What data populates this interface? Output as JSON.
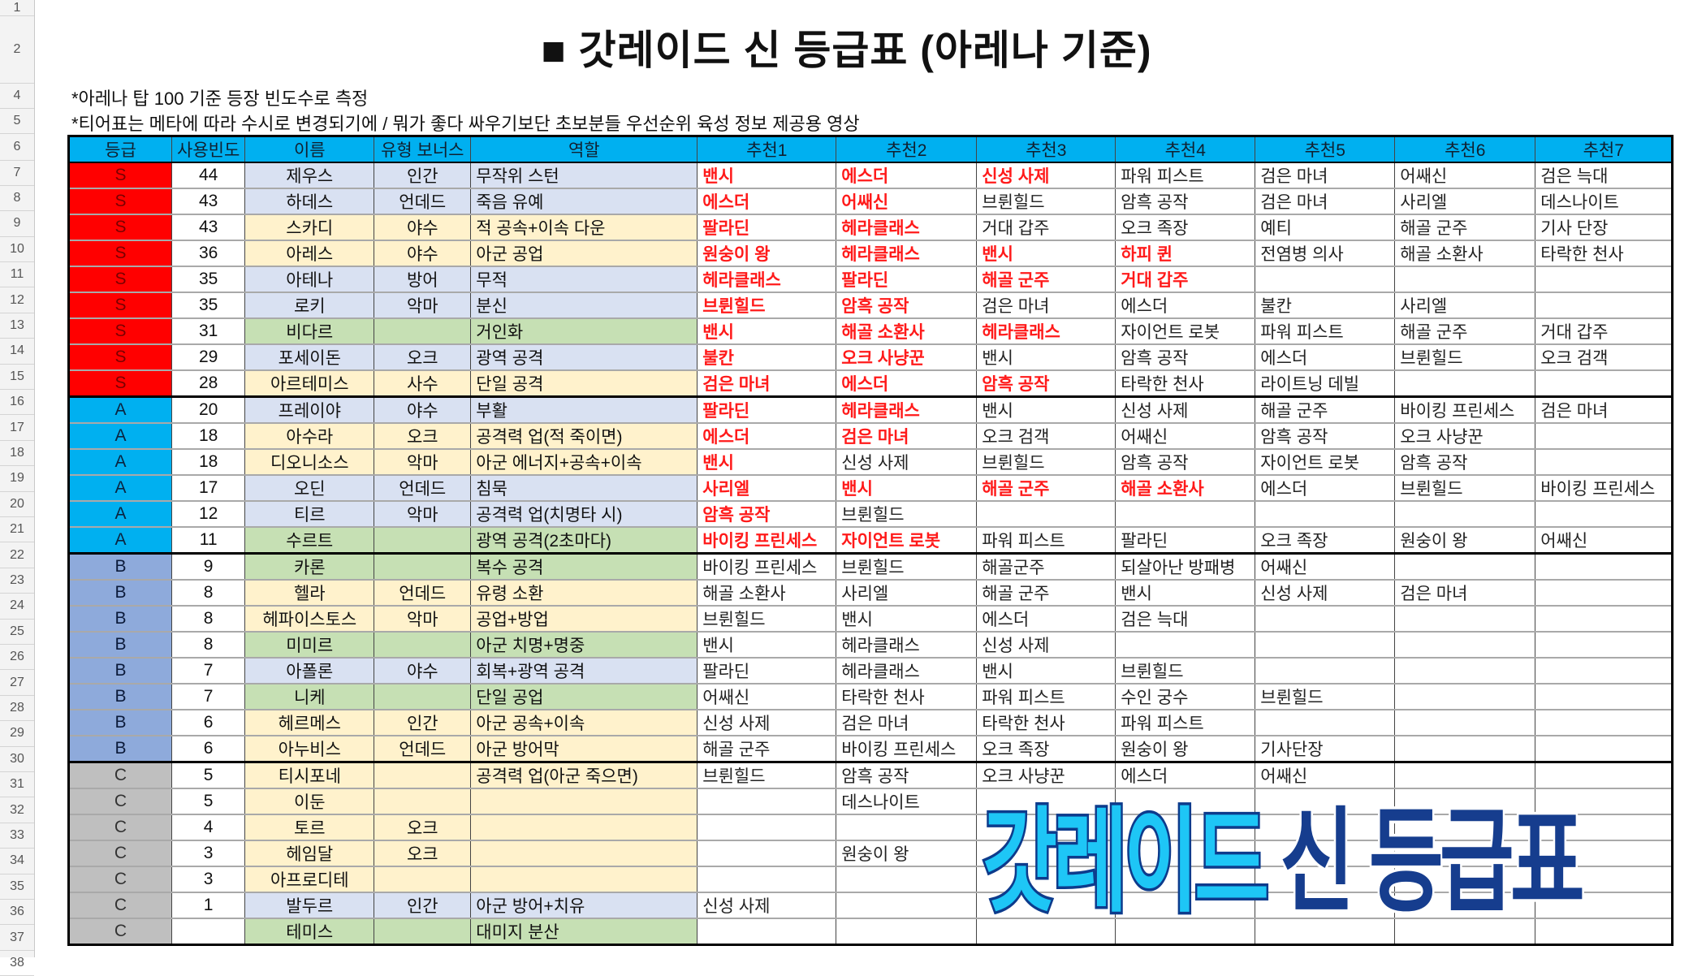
{
  "row_numbers": [
    "1",
    "2",
    "4",
    "5",
    "6",
    "7",
    "8",
    "9",
    "10",
    "11",
    "12",
    "13",
    "14",
    "15",
    "16",
    "17",
    "18",
    "19",
    "20",
    "21",
    "22",
    "23",
    "24",
    "25",
    "26",
    "27",
    "28",
    "29",
    "30",
    "31",
    "32",
    "33",
    "34",
    "35",
    "36",
    "37",
    "38"
  ],
  "title": "■ 갓레이드 신 등급표 (아레나 기준)",
  "notes": [
    "*아레나 탑 100 기준 등장 빈도수로 측정",
    "*티어표는 메타에 따라 수시로 변경되기에 / 뭐가 좋다 싸우기보단 초보분들 우선순위 육성 정보 제공용 영상"
  ],
  "columns": [
    "등급",
    "사용빈도",
    "이름",
    "유형 보너스",
    "역할",
    "추천1",
    "추천2",
    "추천3",
    "추천4",
    "추천5",
    "추천6",
    "추천7"
  ],
  "colors": {
    "S": "#ff0000",
    "A": "#00b0f0",
    "B": "#8eaadb",
    "C": "#bfbfbf",
    "header": "#00b0f0",
    "blue": "#d9e1f2",
    "yellow": "#fff2cc",
    "green": "#c6e0b4",
    "highlight_text": "#ff1a1a"
  },
  "rows": [
    {
      "grade": "S",
      "freq": "44",
      "name": "제우스",
      "bg": "blue",
      "type": "인간",
      "role": "무작위 스턴",
      "recs": [
        "밴시",
        "에스더",
        "신성 사제",
        "파워 피스트",
        "검은 마녀",
        "어쌔신",
        "검은 늑대"
      ],
      "red": 3
    },
    {
      "grade": "S",
      "freq": "43",
      "name": "하데스",
      "bg": "blue",
      "type": "언데드",
      "role": "죽음 유예",
      "recs": [
        "에스더",
        "어쌔신",
        "브륀힐드",
        "암흑 공작",
        "검은 마녀",
        "사리엘",
        "데스나이트"
      ],
      "red": 2
    },
    {
      "grade": "S",
      "freq": "43",
      "name": "스카디",
      "bg": "yellow",
      "type": "야수",
      "role": "적 공속+이속 다운",
      "recs": [
        "팔라딘",
        "헤라클래스",
        "거대 갑주",
        "오크 족장",
        "예티",
        "해골 군주",
        "기사 단장"
      ],
      "red": 2
    },
    {
      "grade": "S",
      "freq": "36",
      "name": "아레스",
      "bg": "yellow",
      "type": "야수",
      "role": "아군 공업",
      "recs": [
        "원숭이 왕",
        "헤라클래스",
        "밴시",
        "하피 퀸",
        "전염병 의사",
        "해골 소환사",
        "타락한 천사"
      ],
      "red": 4
    },
    {
      "grade": "S",
      "freq": "35",
      "name": "아테나",
      "bg": "blue",
      "type": "방어",
      "role": "무적",
      "recs": [
        "헤라클래스",
        "팔라딘",
        "해골 군주",
        "거대 갑주",
        "",
        "",
        ""
      ],
      "red": 4
    },
    {
      "grade": "S",
      "freq": "35",
      "name": "로키",
      "bg": "blue",
      "type": "악마",
      "role": "분신",
      "recs": [
        "브륀힐드",
        "암흑 공작",
        "검은 마녀",
        "에스더",
        "불칸",
        "사리엘",
        ""
      ],
      "red": 2
    },
    {
      "grade": "S",
      "freq": "31",
      "name": "비다르",
      "bg": "green",
      "type": "",
      "role": "거인화",
      "recs": [
        "밴시",
        "해골 소환사",
        "헤라클래스",
        "자이언트 로봇",
        "파워 피스트",
        "해골 군주",
        "거대 갑주"
      ],
      "red": 3
    },
    {
      "grade": "S",
      "freq": "29",
      "name": "포세이돈",
      "bg": "blue",
      "type": "오크",
      "role": "광역 공격",
      "recs": [
        "불칸",
        "오크 사냥꾼",
        "밴시",
        "암흑 공작",
        "에스더",
        "브륀힐드",
        "오크 검객"
      ],
      "red": 2
    },
    {
      "grade": "S",
      "freq": "28",
      "name": "아르테미스",
      "bg": "yellow",
      "type": "사수",
      "role": "단일 공격",
      "recs": [
        "검은 마녀",
        "에스더",
        "암흑 공작",
        "타락한 천사",
        "라이트닝 데빌",
        "",
        ""
      ],
      "red": 3
    },
    {
      "grade": "A",
      "freq": "20",
      "name": "프레이야",
      "bg": "blue",
      "type": "야수",
      "role": "부활",
      "recs": [
        "팔라딘",
        "헤라클래스",
        "밴시",
        "신성 사제",
        "해골 군주",
        "바이킹 프린세스",
        "검은 마녀"
      ],
      "red": 2
    },
    {
      "grade": "A",
      "freq": "18",
      "name": "아수라",
      "bg": "yellow",
      "type": "오크",
      "role": "공격력 업(적 죽이면)",
      "recs": [
        "에스더",
        "검은 마녀",
        "오크 검객",
        "어쌔신",
        "암흑 공작",
        "오크 사냥꾼",
        ""
      ],
      "red": 2
    },
    {
      "grade": "A",
      "freq": "18",
      "name": "디오니소스",
      "bg": "yellow",
      "type": "악마",
      "role": "아군 에너지+공속+이속",
      "recs": [
        "밴시",
        "신성 사제",
        "브륀힐드",
        "암흑 공작",
        "자이언트 로봇",
        "암흑 공작",
        ""
      ],
      "red": 1
    },
    {
      "grade": "A",
      "freq": "17",
      "name": "오딘",
      "bg": "blue",
      "type": "언데드",
      "role": "침묵",
      "recs": [
        "사리엘",
        "밴시",
        "해골 군주",
        "해골 소환사",
        "에스더",
        "브륀힐드",
        "바이킹 프린세스"
      ],
      "red": 4
    },
    {
      "grade": "A",
      "freq": "12",
      "name": "티르",
      "bg": "blue",
      "type": "악마",
      "role": "공격력 업(치명타 시)",
      "recs": [
        "암흑 공작",
        "브륀힐드",
        "",
        "",
        "",
        "",
        ""
      ],
      "red": 1
    },
    {
      "grade": "A",
      "freq": "11",
      "name": "수르트",
      "bg": "green",
      "type": "",
      "role": "광역 공격(2초마다)",
      "recs": [
        "바이킹 프린세스",
        "자이언트 로봇",
        "파워 피스트",
        "팔라딘",
        "오크 족장",
        "원숭이 왕",
        "어쌔신"
      ],
      "red": 2
    },
    {
      "grade": "B",
      "freq": "9",
      "name": "카론",
      "bg": "green",
      "type": "",
      "role": "복수 공격",
      "recs": [
        "바이킹 프린세스",
        "브륀힐드",
        "해골군주",
        "되살아난 방패병",
        "어쌔신",
        "",
        ""
      ],
      "red": 0
    },
    {
      "grade": "B",
      "freq": "8",
      "name": "헬라",
      "bg": "yellow",
      "type": "언데드",
      "role": "유령 소환",
      "recs": [
        "해골 소환사",
        "사리엘",
        "해골 군주",
        "밴시",
        "신성 사제",
        "검은 마녀",
        ""
      ],
      "red": 0
    },
    {
      "grade": "B",
      "freq": "8",
      "name": "헤파이스토스",
      "bg": "yellow",
      "type": "악마",
      "role": "공업+방업",
      "recs": [
        "브륀힐드",
        "밴시",
        "에스더",
        "검은 늑대",
        "",
        "",
        ""
      ],
      "red": 0
    },
    {
      "grade": "B",
      "freq": "8",
      "name": "미미르",
      "bg": "green",
      "type": "",
      "role": "아군 치명+명중",
      "recs": [
        "밴시",
        "헤라클래스",
        "신성 사제",
        "",
        "",
        "",
        ""
      ],
      "red": 0
    },
    {
      "grade": "B",
      "freq": "7",
      "name": "아폴론",
      "bg": "blue",
      "type": "야수",
      "role": "회복+광역 공격",
      "recs": [
        "팔라딘",
        "헤라클래스",
        "밴시",
        "브륀힐드",
        "",
        "",
        ""
      ],
      "red": 0
    },
    {
      "grade": "B",
      "freq": "7",
      "name": "니케",
      "bg": "green",
      "type": "",
      "role": "단일 공업",
      "recs": [
        "어쌔신",
        "타락한 천사",
        "파워 피스트",
        "수인 궁수",
        "브륀힐드",
        "",
        ""
      ],
      "red": 0
    },
    {
      "grade": "B",
      "freq": "6",
      "name": "헤르메스",
      "bg": "yellow",
      "type": "인간",
      "role": "아군 공속+이속",
      "recs": [
        "신성 사제",
        "검은 마녀",
        "타락한 천사",
        "파워 피스트",
        "",
        "",
        ""
      ],
      "red": 0
    },
    {
      "grade": "B",
      "freq": "6",
      "name": "아누비스",
      "bg": "yellow",
      "type": "언데드",
      "role": "아군 방어막",
      "recs": [
        "해골 군주",
        "바이킹 프린세스",
        "오크 족장",
        "원숭이 왕",
        "기사단장",
        "",
        ""
      ],
      "red": 0
    },
    {
      "grade": "C",
      "freq": "5",
      "name": "티시포네",
      "bg": "yellow",
      "type": "",
      "role": "공격력 업(아군 죽으면)",
      "recs": [
        "브륀힐드",
        "암흑 공작",
        "오크 사냥꾼",
        "에스더",
        "어쌔신",
        "",
        ""
      ],
      "red": 0
    },
    {
      "grade": "C",
      "freq": "5",
      "name": "이둔",
      "bg": "yellow",
      "type": "",
      "role": "",
      "recs": [
        "",
        "데스나이트",
        "",
        "",
        "",
        "",
        ""
      ],
      "red": 0
    },
    {
      "grade": "C",
      "freq": "4",
      "name": "토르",
      "bg": "yellow",
      "type": "오크",
      "role": "",
      "recs": [
        "",
        "",
        "",
        "",
        "",
        "",
        ""
      ],
      "red": 0
    },
    {
      "grade": "C",
      "freq": "3",
      "name": "헤임달",
      "bg": "yellow",
      "type": "오크",
      "role": "",
      "recs": [
        "",
        "원숭이 왕",
        "",
        "",
        "",
        "",
        ""
      ],
      "red": 0
    },
    {
      "grade": "C",
      "freq": "3",
      "name": "아프로디테",
      "bg": "yellow",
      "type": "",
      "role": "",
      "recs": [
        "",
        "",
        "",
        "",
        "",
        "",
        ""
      ],
      "red": 0
    },
    {
      "grade": "C",
      "freq": "1",
      "name": "발두르",
      "bg": "blue",
      "type": "인간",
      "role": "아군 방어+치유",
      "recs": [
        "신성 사제",
        "",
        "",
        "",
        "",
        "",
        ""
      ],
      "red": 0
    },
    {
      "grade": "C",
      "freq": "",
      "name": "테미스",
      "bg": "green",
      "type": "",
      "role": "대미지 분산",
      "recs": [
        "",
        "",
        "",
        "",
        "",
        "",
        ""
      ],
      "red": 0
    }
  ],
  "overlay": {
    "part1": "갓레이드",
    "part2": "신 등급표"
  }
}
